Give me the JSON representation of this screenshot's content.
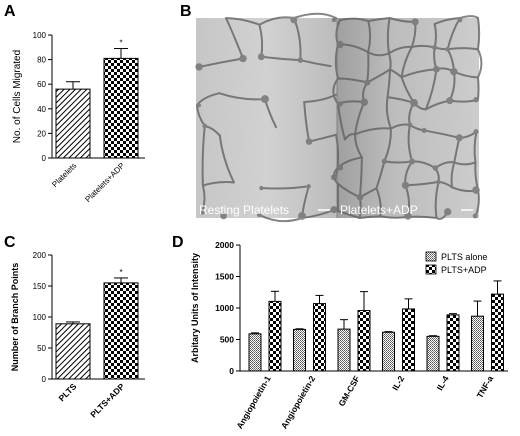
{
  "panels": {
    "A": {
      "letter": "A"
    },
    "B": {
      "letter": "B",
      "left_label": "Resting Platelets",
      "right_label": "Platelets+ADP"
    },
    "C": {
      "letter": "C"
    },
    "D": {
      "letter": "D"
    }
  },
  "chart_data": [
    {
      "id": "A",
      "type": "bar",
      "title": "",
      "ylabel": "No. of Cells Migrated",
      "xlabel": "",
      "categories": [
        "Platelets",
        "Platelets+ADP"
      ],
      "values": [
        56,
        81
      ],
      "errors": [
        6,
        8
      ],
      "ylim": [
        0,
        100
      ],
      "yticks": [
        0,
        20,
        40,
        60,
        80,
        100
      ],
      "significance": [
        "",
        "*"
      ]
    },
    {
      "id": "C",
      "type": "bar",
      "title": "",
      "ylabel": "Number of Branch Points",
      "xlabel": "",
      "categories": [
        "PLTS",
        "PLTS+ADP"
      ],
      "values": [
        89,
        155
      ],
      "errors": [
        3,
        8
      ],
      "ylim": [
        0,
        200
      ],
      "yticks": [
        0,
        50,
        100,
        150,
        200
      ],
      "significance": [
        "",
        "*"
      ]
    },
    {
      "id": "D",
      "type": "bar",
      "title": "",
      "ylabel": "Arbitary Units of Intensity",
      "xlabel": "",
      "categories": [
        "Angiopoietin-1",
        "Angiopoietin-2",
        "GM-CSF",
        "IL-2",
        "IL-4",
        "TNF-a"
      ],
      "series": [
        {
          "name": "PLTS alone",
          "values": [
            590,
            660,
            665,
            615,
            550,
            870
          ],
          "errors": [
            15,
            10,
            150,
            10,
            10,
            240
          ]
        },
        {
          "name": "PLTS+ADP",
          "values": [
            1105,
            1070,
            960,
            985,
            890,
            1220
          ],
          "errors": [
            160,
            130,
            300,
            160,
            20,
            210
          ]
        }
      ],
      "ylim": [
        0,
        2000
      ],
      "yticks": [
        0,
        500,
        1000,
        1500,
        2000
      ],
      "legend": "top-right"
    }
  ]
}
